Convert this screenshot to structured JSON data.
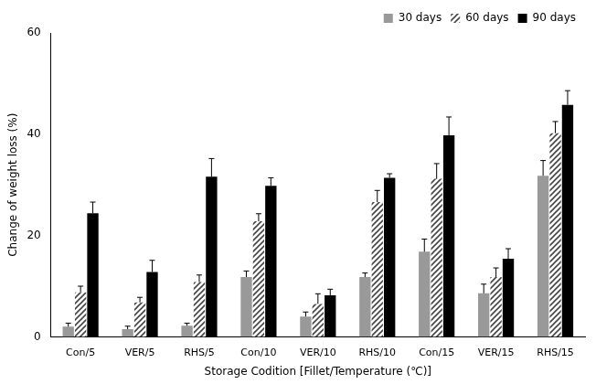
{
  "chart_data": {
    "type": "bar",
    "x_label": "Storage Codition [Fillet/Temperature (℃)]",
    "y_label": "Change of weight loss (%)",
    "categories": [
      "Con/5",
      "VER/5",
      "RHS/5",
      "Con/10",
      "VER/10",
      "RHS/10",
      "Con/15",
      "VER/15",
      "RHS/15"
    ],
    "series": [
      {
        "name": "30 days",
        "color": "#999999",
        "values": [
          2.0,
          1.5,
          2.2,
          11.8,
          4.0,
          11.8,
          16.8,
          8.6,
          31.8
        ],
        "errors": [
          0.7,
          0.6,
          0.5,
          1.2,
          0.9,
          0.8,
          2.5,
          1.8,
          3.0
        ]
      },
      {
        "name": "60 days",
        "color": "#444444",
        "values": [
          8.8,
          6.8,
          10.8,
          22.8,
          6.5,
          26.6,
          31.2,
          11.8,
          40.2
        ],
        "errors": [
          1.2,
          1.0,
          1.4,
          1.5,
          2.0,
          2.3,
          3.0,
          1.8,
          2.3
        ]
      },
      {
        "name": "90 days",
        "color": "#000000",
        "values": [
          24.4,
          12.8,
          31.6,
          29.8,
          8.2,
          31.4,
          39.8,
          15.4,
          45.8
        ],
        "errors": [
          2.2,
          2.3,
          3.6,
          1.6,
          1.2,
          0.8,
          3.6,
          2.0,
          2.8
        ]
      }
    ],
    "ylim": [
      0,
      60
    ],
    "yticks": [
      0,
      20,
      40,
      60
    ],
    "grid": false,
    "legend": "top-right"
  }
}
